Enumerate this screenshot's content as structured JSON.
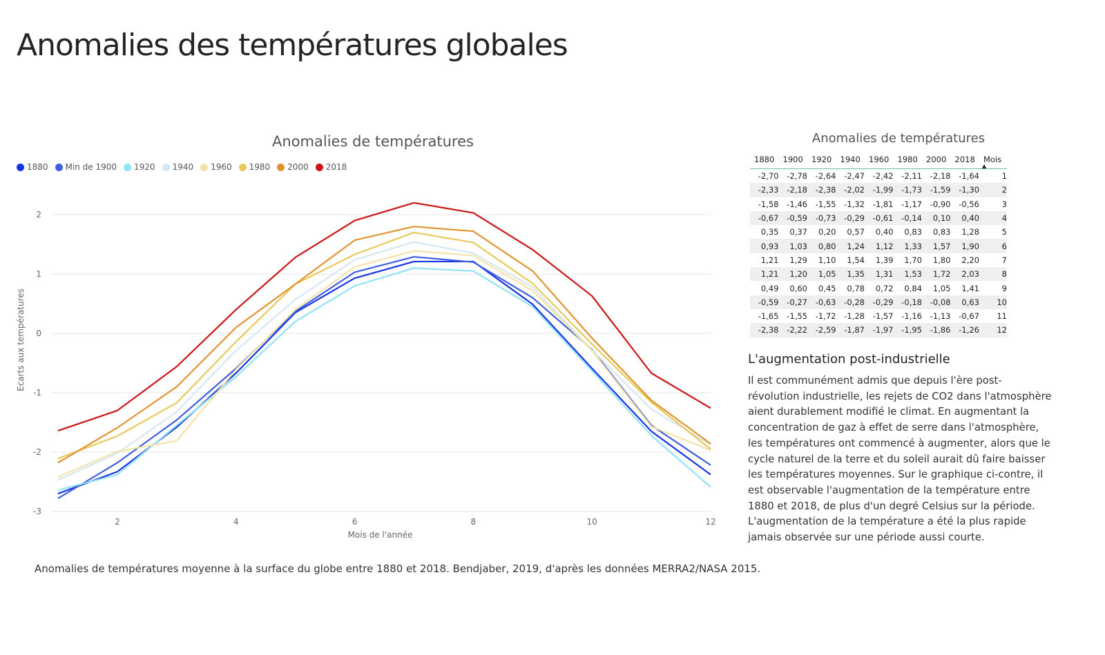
{
  "page": {
    "title": "Anomalies des températures globales"
  },
  "chart_data": {
    "type": "line",
    "title": "Anomalies de températures",
    "xlabel": "Mois de l'année",
    "ylabel": "Ecarts aux températures",
    "x": [
      1,
      2,
      3,
      4,
      5,
      6,
      7,
      8,
      9,
      10,
      11,
      12
    ],
    "xticks": [
      2,
      4,
      6,
      8,
      10,
      12
    ],
    "xlim": [
      1,
      12
    ],
    "ylim": [
      -3,
      2.5
    ],
    "yticks": [
      -3,
      -2,
      -1,
      0,
      1,
      2
    ],
    "grid": true,
    "legend_position": "top-left",
    "series": [
      {
        "name": "1880",
        "color": "#1432e6",
        "values": [
          -2.7,
          -2.33,
          -1.58,
          -0.67,
          0.35,
          0.93,
          1.21,
          1.21,
          0.49,
          -0.59,
          -1.65,
          -2.38
        ]
      },
      {
        "name": "Min de 1900",
        "color": "#3f5fe0",
        "values": [
          -2.78,
          -2.18,
          -1.46,
          -0.59,
          0.37,
          1.03,
          1.29,
          1.2,
          0.6,
          -0.27,
          -1.55,
          -2.22
        ]
      },
      {
        "name": "1920",
        "color": "#8fe3f5",
        "values": [
          -2.64,
          -2.38,
          -1.55,
          -0.73,
          0.2,
          0.8,
          1.1,
          1.05,
          0.45,
          -0.63,
          -1.72,
          -2.59
        ]
      },
      {
        "name": "1940",
        "color": "#d6e6f2",
        "values": [
          -2.47,
          -2.02,
          -1.32,
          -0.29,
          0.57,
          1.24,
          1.54,
          1.35,
          0.78,
          -0.28,
          -1.28,
          -1.87
        ]
      },
      {
        "name": "1960",
        "color": "#f3e3a6",
        "values": [
          -2.42,
          -1.99,
          -1.81,
          -0.61,
          0.4,
          1.12,
          1.39,
          1.31,
          0.72,
          -0.29,
          -1.57,
          -1.97
        ]
      },
      {
        "name": "1980",
        "color": "#e8c95a",
        "values": [
          -2.11,
          -1.73,
          -1.17,
          -0.14,
          0.83,
          1.33,
          1.7,
          1.53,
          0.84,
          -0.18,
          -1.16,
          -1.95
        ]
      },
      {
        "name": "2000",
        "color": "#e2932e",
        "values": [
          -2.18,
          -1.59,
          -0.9,
          0.1,
          0.83,
          1.57,
          1.8,
          1.72,
          1.05,
          -0.08,
          -1.13,
          -1.86
        ]
      },
      {
        "name": "2018",
        "color": "#cc1414",
        "values": [
          -1.64,
          -1.3,
          -0.56,
          0.4,
          1.28,
          1.9,
          2.2,
          2.03,
          1.41,
          0.63,
          -0.67,
          -1.26
        ]
      }
    ]
  },
  "caption": "Anomalies de températures moyenne à la surface du globe entre 1880 et 2018. Bendjaber, 2019, d'après les données MERRA2/NASA 2015.",
  "table": {
    "title": "Anomalies de températures",
    "headers": [
      "1880",
      "1900",
      "1920",
      "1940",
      "1960",
      "1980",
      "2000",
      "2018",
      "Mois"
    ],
    "rows": [
      [
        "-2,70",
        "-2,78",
        "-2,64",
        "-2,47",
        "-2,42",
        "-2,11",
        "-2,18",
        "-1,64",
        "1"
      ],
      [
        "-2,33",
        "-2,18",
        "-2,38",
        "-2,02",
        "-1,99",
        "-1,73",
        "-1,59",
        "-1,30",
        "2"
      ],
      [
        "-1,58",
        "-1,46",
        "-1,55",
        "-1,32",
        "-1,81",
        "-1,17",
        "-0,90",
        "-0,56",
        "3"
      ],
      [
        "-0,67",
        "-0,59",
        "-0,73",
        "-0,29",
        "-0,61",
        "-0,14",
        "0,10",
        "0,40",
        "4"
      ],
      [
        "0,35",
        "0,37",
        "0,20",
        "0,57",
        "0,40",
        "0,83",
        "0,83",
        "1,28",
        "5"
      ],
      [
        "0,93",
        "1,03",
        "0,80",
        "1,24",
        "1,12",
        "1,33",
        "1,57",
        "1,90",
        "6"
      ],
      [
        "1,21",
        "1,29",
        "1,10",
        "1,54",
        "1,39",
        "1,70",
        "1,80",
        "2,20",
        "7"
      ],
      [
        "1,21",
        "1,20",
        "1,05",
        "1,35",
        "1,31",
        "1,53",
        "1,72",
        "2,03",
        "8"
      ],
      [
        "0,49",
        "0,60",
        "0,45",
        "0,78",
        "0,72",
        "0,84",
        "1,05",
        "1,41",
        "9"
      ],
      [
        "-0,59",
        "-0,27",
        "-0,63",
        "-0,28",
        "-0,29",
        "-0,18",
        "-0,08",
        "0,63",
        "10"
      ],
      [
        "-1,65",
        "-1,55",
        "-1,72",
        "-1,28",
        "-1,57",
        "-1,16",
        "-1,13",
        "-0,67",
        "11"
      ],
      [
        "-2,38",
        "-2,22",
        "-2,59",
        "-1,87",
        "-1,97",
        "-1,95",
        "-1,86",
        "-1,26",
        "12"
      ]
    ]
  },
  "article": {
    "heading": "L'augmentation post-industrielle",
    "body": "Il est communément admis que depuis l'ère post-révolution industrielle, les rejets de CO2 dans l'atmosphère aient durablement modifié le climat. En augmentant la concentration de gaz à effet de serre dans l'atmosphère, les températures ont commencé à augmenter, alors que le cycle naturel de la terre et du soleil aurait dû faire baisser les températures moyennes. Sur le graphique ci-contre, il est observable l'augmentation de la température entre 1880 et 2018, de plus d'un degré Celsius sur la période. L'augmentation de la température a été la plus rapide jamais observée sur une période aussi courte."
  }
}
